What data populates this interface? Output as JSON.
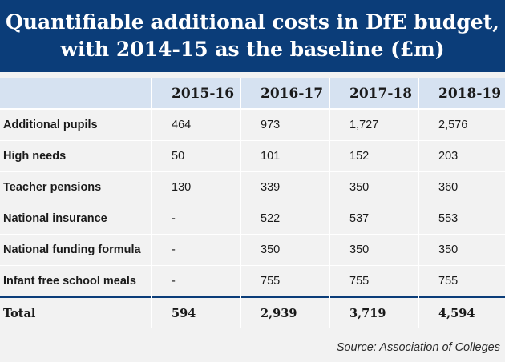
{
  "banner": {
    "title": "Quantifiable additional costs in DfE budget,\nwith 2014-15 as the baseline (£m)"
  },
  "colors": {
    "banner_bg": "#0b3d79",
    "header_bg": "#d6e2f1",
    "body_bg": "#f2f2f2"
  },
  "chart_data": {
    "type": "table",
    "title": "Quantifiable additional costs in DfE budget, with 2014-15 as the baseline (£m)",
    "columns": [
      "2015-16",
      "2016-17",
      "2017-18",
      "2018-19"
    ],
    "rows": [
      {
        "label": "Additional pupils",
        "values": [
          "464",
          "973",
          "1,727",
          "2,576"
        ]
      },
      {
        "label": "High needs",
        "values": [
          "50",
          "101",
          "152",
          "203"
        ]
      },
      {
        "label": "Teacher pensions",
        "values": [
          "130",
          "339",
          "350",
          "360"
        ]
      },
      {
        "label": "National insurance",
        "values": [
          "-",
          "522",
          "537",
          "553"
        ]
      },
      {
        "label": "National funding formula",
        "values": [
          "-",
          "350",
          "350",
          "350"
        ]
      },
      {
        "label": "Infant free school meals",
        "values": [
          "-",
          "755",
          "755",
          "755"
        ]
      }
    ],
    "total": {
      "label": "Total",
      "values": [
        "594",
        "2,939",
        "3,719",
        "4,594"
      ]
    }
  },
  "source": "Source: Association of Colleges"
}
